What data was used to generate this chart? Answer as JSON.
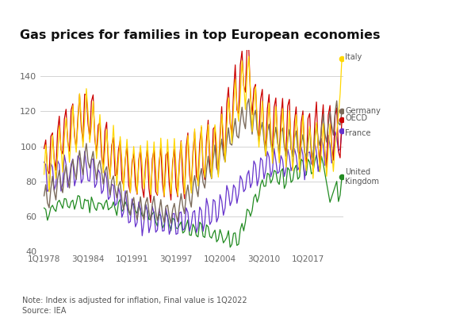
{
  "title": "Gas prices for families in top European economies",
  "note": "Note: Index is adjusted for inflation, Final value is 1Q2022",
  "source": "Source: IEA",
  "ylim": [
    40,
    155
  ],
  "yticks": [
    40,
    60,
    80,
    100,
    120,
    140
  ],
  "xtick_labels": [
    "1Q1978",
    "3Q1984",
    "1Q1991",
    "3Q1997",
    "1Q2004",
    "3Q2010",
    "1Q2017"
  ],
  "xtick_positions": [
    0,
    26,
    52,
    78,
    104,
    130,
    156
  ],
  "colors": {
    "Italy": "#FFD700",
    "Germany": "#7B6B5B",
    "OECD": "#CC0000",
    "France": "#6633CC",
    "United Kingdom": "#228B22"
  },
  "background": "#FFFFFF",
  "grid_color": "#CCCCCC"
}
